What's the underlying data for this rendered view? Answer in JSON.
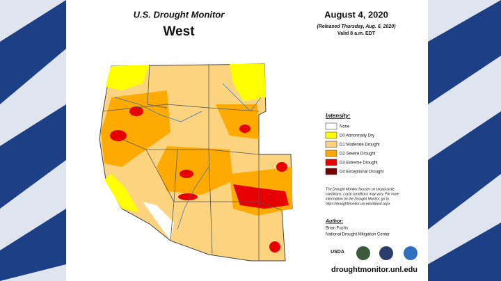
{
  "header": {
    "title": "U.S. Drought Monitor",
    "region": "West",
    "date": "August 4, 2020",
    "released": "(Released Thursday, Aug. 6, 2020)",
    "valid": "Valid 8 a.m. EDT"
  },
  "legend": {
    "title": "Intensity:",
    "items": [
      {
        "label": "None",
        "color": "#ffffff"
      },
      {
        "label": "D0 Abnormally Dry",
        "color": "#ffff00"
      },
      {
        "label": "D1 Moderate Drought",
        "color": "#fcd37f"
      },
      {
        "label": "D2 Severe Drought",
        "color": "#ffaa00"
      },
      {
        "label": "D3 Extreme Drought",
        "color": "#e60000"
      },
      {
        "label": "D4 Exceptional Drought",
        "color": "#730000"
      }
    ]
  },
  "note": [
    "The Drought Monitor focuses on broad-scale",
    "conditions. Local conditions may vary. For more",
    "information on the Drought Monitor, go to",
    "https://droughtmonitor.unl.edu/About.aspx"
  ],
  "author": {
    "heading": "Author:",
    "name": "Brian Fuchs",
    "org": "National Drought Mitigation Center"
  },
  "logos": {
    "usda": "USDA"
  },
  "footer": {
    "url": "droughtmonitor.unl.edu"
  }
}
